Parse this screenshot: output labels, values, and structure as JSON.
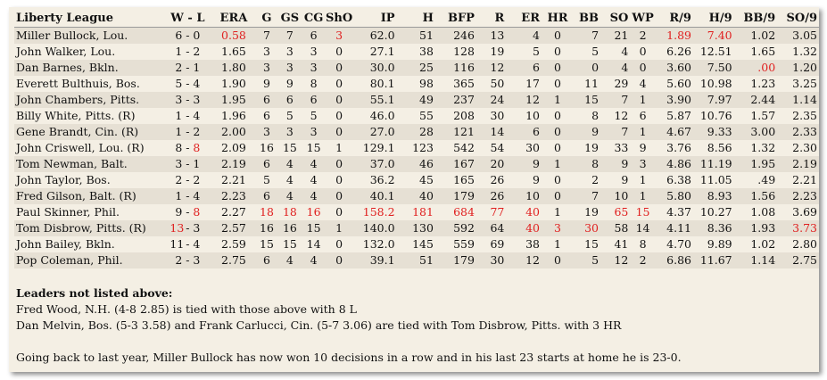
{
  "header": {
    "league": "Liberty League",
    "columns": [
      "W - L",
      "ERA",
      "G",
      "GS",
      "CG",
      "ShO",
      "IP",
      "H",
      "BFP",
      "R",
      "ER",
      "HR",
      "BB",
      "SO",
      "WP",
      "R/9",
      "H/9",
      "BB/9",
      "SO/9"
    ]
  },
  "accent_color": "#e02020",
  "rows": [
    {
      "name": "Miller Bullock, Lou.",
      "w": "6",
      "l": "0",
      "era": "0.58",
      "g": "7",
      "gs": "7",
      "cg": "6",
      "sho": "3",
      "ip": "62.0",
      "h": "51",
      "bfp": "246",
      "r": "13",
      "er": "4",
      "hr": "0",
      "bb": "7",
      "so": "21",
      "wp": "2",
      "r9": "1.89",
      "h9": "7.40",
      "bb9": "1.02",
      "so9": "3.05",
      "red": [
        "era",
        "sho",
        "r9",
        "h9"
      ]
    },
    {
      "name": "John Walker, Lou.",
      "w": "1",
      "l": "2",
      "era": "1.65",
      "g": "3",
      "gs": "3",
      "cg": "3",
      "sho": "0",
      "ip": "27.1",
      "h": "38",
      "bfp": "128",
      "r": "19",
      "er": "5",
      "hr": "0",
      "bb": "5",
      "so": "4",
      "wp": "0",
      "r9": "6.26",
      "h9": "12.51",
      "bb9": "1.65",
      "so9": "1.32",
      "red": []
    },
    {
      "name": "Dan Barnes, Bkln.",
      "w": "2",
      "l": "1",
      "era": "1.80",
      "g": "3",
      "gs": "3",
      "cg": "3",
      "sho": "0",
      "ip": "30.0",
      "h": "25",
      "bfp": "116",
      "r": "12",
      "er": "6",
      "hr": "0",
      "bb": "0",
      "so": "4",
      "wp": "0",
      "r9": "3.60",
      "h9": "7.50",
      "bb9": ".00",
      "so9": "1.20",
      "red": [
        "bb9"
      ]
    },
    {
      "name": "Everett Bulthuis, Bos.",
      "w": "5",
      "l": "4",
      "era": "1.90",
      "g": "9",
      "gs": "9",
      "cg": "8",
      "sho": "0",
      "ip": "80.1",
      "h": "98",
      "bfp": "365",
      "r": "50",
      "er": "17",
      "hr": "0",
      "bb": "11",
      "so": "29",
      "wp": "4",
      "r9": "5.60",
      "h9": "10.98",
      "bb9": "1.23",
      "so9": "3.25",
      "red": []
    },
    {
      "name": "John Chambers, Pitts.",
      "w": "3",
      "l": "3",
      "era": "1.95",
      "g": "6",
      "gs": "6",
      "cg": "6",
      "sho": "0",
      "ip": "55.1",
      "h": "49",
      "bfp": "237",
      "r": "24",
      "er": "12",
      "hr": "1",
      "bb": "15",
      "so": "7",
      "wp": "1",
      "r9": "3.90",
      "h9": "7.97",
      "bb9": "2.44",
      "so9": "1.14",
      "red": []
    },
    {
      "name": "Billy White, Pitts.  (R)",
      "w": "1",
      "l": "4",
      "era": "1.96",
      "g": "6",
      "gs": "5",
      "cg": "5",
      "sho": "0",
      "ip": "46.0",
      "h": "55",
      "bfp": "208",
      "r": "30",
      "er": "10",
      "hr": "0",
      "bb": "8",
      "so": "12",
      "wp": "6",
      "r9": "5.87",
      "h9": "10.76",
      "bb9": "1.57",
      "so9": "2.35",
      "red": []
    },
    {
      "name": "Gene Brandt, Cin.  (R)",
      "w": "1",
      "l": "2",
      "era": "2.00",
      "g": "3",
      "gs": "3",
      "cg": "3",
      "sho": "0",
      "ip": "27.0",
      "h": "28",
      "bfp": "121",
      "r": "14",
      "er": "6",
      "hr": "0",
      "bb": "9",
      "so": "7",
      "wp": "1",
      "r9": "4.67",
      "h9": "9.33",
      "bb9": "3.00",
      "so9": "2.33",
      "red": []
    },
    {
      "name": "John Criswell, Lou.  (R)",
      "w": "8",
      "l": "8",
      "era": "2.09",
      "g": "16",
      "gs": "15",
      "cg": "15",
      "sho": "1",
      "ip": "129.1",
      "h": "123",
      "bfp": "542",
      "r": "54",
      "er": "30",
      "hr": "0",
      "bb": "19",
      "so": "33",
      "wp": "9",
      "r9": "3.76",
      "h9": "8.56",
      "bb9": "1.32",
      "so9": "2.30",
      "red": [
        "l"
      ]
    },
    {
      "name": "Tom Newman, Balt.",
      "w": "3",
      "l": "1",
      "era": "2.19",
      "g": "6",
      "gs": "4",
      "cg": "4",
      "sho": "0",
      "ip": "37.0",
      "h": "46",
      "bfp": "167",
      "r": "20",
      "er": "9",
      "hr": "1",
      "bb": "8",
      "so": "9",
      "wp": "3",
      "r9": "4.86",
      "h9": "11.19",
      "bb9": "1.95",
      "so9": "2.19",
      "red": []
    },
    {
      "name": "John Taylor, Bos.",
      "w": "2",
      "l": "2",
      "era": "2.21",
      "g": "5",
      "gs": "4",
      "cg": "4",
      "sho": "0",
      "ip": "36.2",
      "h": "45",
      "bfp": "165",
      "r": "26",
      "er": "9",
      "hr": "0",
      "bb": "2",
      "so": "9",
      "wp": "1",
      "r9": "6.38",
      "h9": "11.05",
      "bb9": ".49",
      "so9": "2.21",
      "red": []
    },
    {
      "name": "Fred Gilson, Balt.  (R)",
      "w": "1",
      "l": "4",
      "era": "2.23",
      "g": "6",
      "gs": "4",
      "cg": "4",
      "sho": "0",
      "ip": "40.1",
      "h": "40",
      "bfp": "179",
      "r": "26",
      "er": "10",
      "hr": "0",
      "bb": "7",
      "so": "10",
      "wp": "1",
      "r9": "5.80",
      "h9": "8.93",
      "bb9": "1.56",
      "so9": "2.23",
      "red": []
    },
    {
      "name": "Paul Skinner, Phil.",
      "w": "9",
      "l": "8",
      "era": "2.27",
      "g": "18",
      "gs": "18",
      "cg": "16",
      "sho": "0",
      "ip": "158.2",
      "h": "181",
      "bfp": "684",
      "r": "77",
      "er": "40",
      "hr": "1",
      "bb": "19",
      "so": "65",
      "wp": "15",
      "r9": "4.37",
      "h9": "10.27",
      "bb9": "1.08",
      "so9": "3.69",
      "red": [
        "l",
        "g",
        "gs",
        "cg",
        "ip",
        "h",
        "bfp",
        "r",
        "er",
        "so",
        "wp"
      ]
    },
    {
      "name": "Tom Disbrow, Pitts.  (R)",
      "w": "13",
      "l": "3",
      "era": "2.57",
      "g": "16",
      "gs": "16",
      "cg": "15",
      "sho": "1",
      "ip": "140.0",
      "h": "130",
      "bfp": "592",
      "r": "64",
      "er": "40",
      "hr": "3",
      "bb": "30",
      "so": "58",
      "wp": "14",
      "r9": "4.11",
      "h9": "8.36",
      "bb9": "1.93",
      "so9": "3.73",
      "red": [
        "w",
        "er",
        "hr",
        "bb",
        "so9"
      ]
    },
    {
      "name": "John Bailey, Bkln.",
      "w": "11",
      "l": "4",
      "era": "2.59",
      "g": "15",
      "gs": "15",
      "cg": "14",
      "sho": "0",
      "ip": "132.0",
      "h": "145",
      "bfp": "559",
      "r": "69",
      "er": "38",
      "hr": "1",
      "bb": "15",
      "so": "41",
      "wp": "8",
      "r9": "4.70",
      "h9": "9.89",
      "bb9": "1.02",
      "so9": "2.80",
      "red": []
    },
    {
      "name": "Pop Coleman, Phil.",
      "w": "2",
      "l": "3",
      "era": "2.75",
      "g": "6",
      "gs": "4",
      "cg": "4",
      "sho": "0",
      "ip": "39.1",
      "h": "51",
      "bfp": "179",
      "r": "30",
      "er": "12",
      "hr": "0",
      "bb": "5",
      "so": "12",
      "wp": "2",
      "r9": "6.86",
      "h9": "11.67",
      "bb9": "1.14",
      "so9": "2.75",
      "red": []
    }
  ],
  "notes": {
    "heading": "Leaders not listed above:",
    "line1": "Fred Wood, N.H. (4-8 2.85) is tied with those above with 8 L",
    "line2": "Dan Melvin, Bos. (5-3 3.58) and Frank Carlucci, Cin. (5-7 3.06) are tied with Tom Disbrow, Pitts. with 3 HR",
    "line3": "Going back to last year, Miller Bullock has now won 10 decisions in a row and in his last 23 starts at home he is 23-0."
  }
}
